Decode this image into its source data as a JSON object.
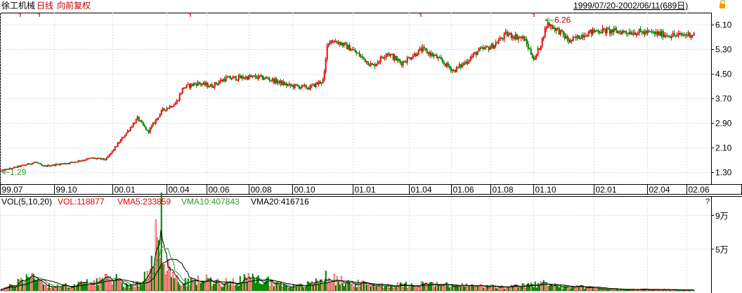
{
  "header": {
    "stock_name": "徐工机械",
    "period": "日线",
    "adjust": "向前复权",
    "range": "1999/07/20-2002/06/11(689日)",
    "lock_icon": "lock-icon"
  },
  "colors": {
    "up": "#e00000",
    "down": "#008800",
    "vma5": "#000000",
    "vma10": "#339933",
    "vma20": "#000000",
    "grid": "#c8c8c8",
    "axis": "#000000",
    "price_text": "#000000",
    "highlight_text": "#c00000"
  },
  "chart_data": [
    {
      "type": "candlestick",
      "ylim": [
        0.9,
        6.5
      ],
      "y_ticks": [
        "6.10",
        "5.30",
        "4.50",
        "3.70",
        "2.90",
        "2.10",
        "1.30"
      ],
      "x_tick_labels": [
        "99.07",
        "99.10",
        "00.01",
        "00.04",
        "00.06",
        "00.08",
        "00.10",
        "01.01",
        "01.04",
        "01.06",
        "01.08",
        "01.10",
        "02.01",
        "02.04",
        "02.06"
      ],
      "trading_days": 689,
      "low_label": "1.29",
      "high_label": "6.26",
      "price_path": [
        [
          0,
          1.33
        ],
        [
          30,
          1.5
        ],
        [
          50,
          1.62
        ],
        [
          60,
          1.48
        ],
        [
          100,
          1.6
        ],
        [
          130,
          1.75
        ],
        [
          150,
          1.7
        ],
        [
          165,
          2.15
        ],
        [
          180,
          2.6
        ],
        [
          195,
          3.05
        ],
        [
          210,
          2.6
        ],
        [
          230,
          3.3
        ],
        [
          250,
          3.55
        ],
        [
          260,
          4.05
        ],
        [
          280,
          4.2
        ],
        [
          300,
          4.1
        ],
        [
          320,
          4.35
        ],
        [
          360,
          4.4
        ],
        [
          380,
          4.35
        ],
        [
          410,
          4.12
        ],
        [
          440,
          4.05
        ],
        [
          460,
          4.3
        ],
        [
          466,
          5.6
        ],
        [
          480,
          5.55
        ],
        [
          500,
          5.3
        ],
        [
          530,
          4.75
        ],
        [
          550,
          5.2
        ],
        [
          570,
          4.85
        ],
        [
          600,
          5.3
        ],
        [
          620,
          5.05
        ],
        [
          645,
          4.6
        ],
        [
          660,
          4.85
        ],
        [
          680,
          5.25
        ],
        [
          700,
          5.4
        ],
        [
          720,
          5.8
        ],
        [
          745,
          5.65
        ],
        [
          760,
          4.95
        ],
        [
          770,
          5.55
        ],
        [
          778,
          6.15
        ],
        [
          795,
          5.9
        ],
        [
          810,
          5.55
        ],
        [
          830,
          5.8
        ],
        [
          850,
          5.92
        ],
        [
          880,
          5.88
        ],
        [
          920,
          5.85
        ],
        [
          960,
          5.75
        ],
        [
          985,
          5.8
        ]
      ],
      "markers": [
        26,
        53,
        268,
        596,
        757
      ]
    },
    {
      "type": "bar",
      "title": "VOL(5,10,20)",
      "legend": [
        {
          "name": "VOL",
          "value": "118877"
        },
        {
          "name": "VMA5",
          "value": "233859"
        },
        {
          "name": "VMA10",
          "value": "407843"
        },
        {
          "name": "VMA20",
          "value": "416716"
        }
      ],
      "ylim": [
        0,
        100000
      ],
      "y_ticks": [
        "9万",
        "5万"
      ],
      "question_mark": "?",
      "volume_path": [
        [
          0,
          3000
        ],
        [
          20,
          8000
        ],
        [
          30,
          18000
        ],
        [
          55,
          22000
        ],
        [
          60,
          9000
        ],
        [
          80,
          6000
        ],
        [
          110,
          9000
        ],
        [
          135,
          14000
        ],
        [
          165,
          18000
        ],
        [
          175,
          9000
        ],
        [
          200,
          10000
        ],
        [
          229,
          95000
        ],
        [
          232,
          62000
        ],
        [
          240,
          30000
        ],
        [
          255,
          11000
        ],
        [
          290,
          16000
        ],
        [
          320,
          12000
        ],
        [
          345,
          17000
        ],
        [
          380,
          15000
        ],
        [
          400,
          9000
        ],
        [
          420,
          6000
        ],
        [
          440,
          10000
        ],
        [
          465,
          20000
        ],
        [
          480,
          15000
        ],
        [
          500,
          11000
        ],
        [
          530,
          9000
        ],
        [
          560,
          8000
        ],
        [
          600,
          10000
        ],
        [
          640,
          8000
        ],
        [
          680,
          7000
        ],
        [
          720,
          5000
        ],
        [
          760,
          9000
        ],
        [
          780,
          12000
        ],
        [
          800,
          5000
        ],
        [
          830,
          6000
        ],
        [
          850,
          3000
        ],
        [
          900,
          2000
        ],
        [
          985,
          1500
        ]
      ]
    }
  ]
}
